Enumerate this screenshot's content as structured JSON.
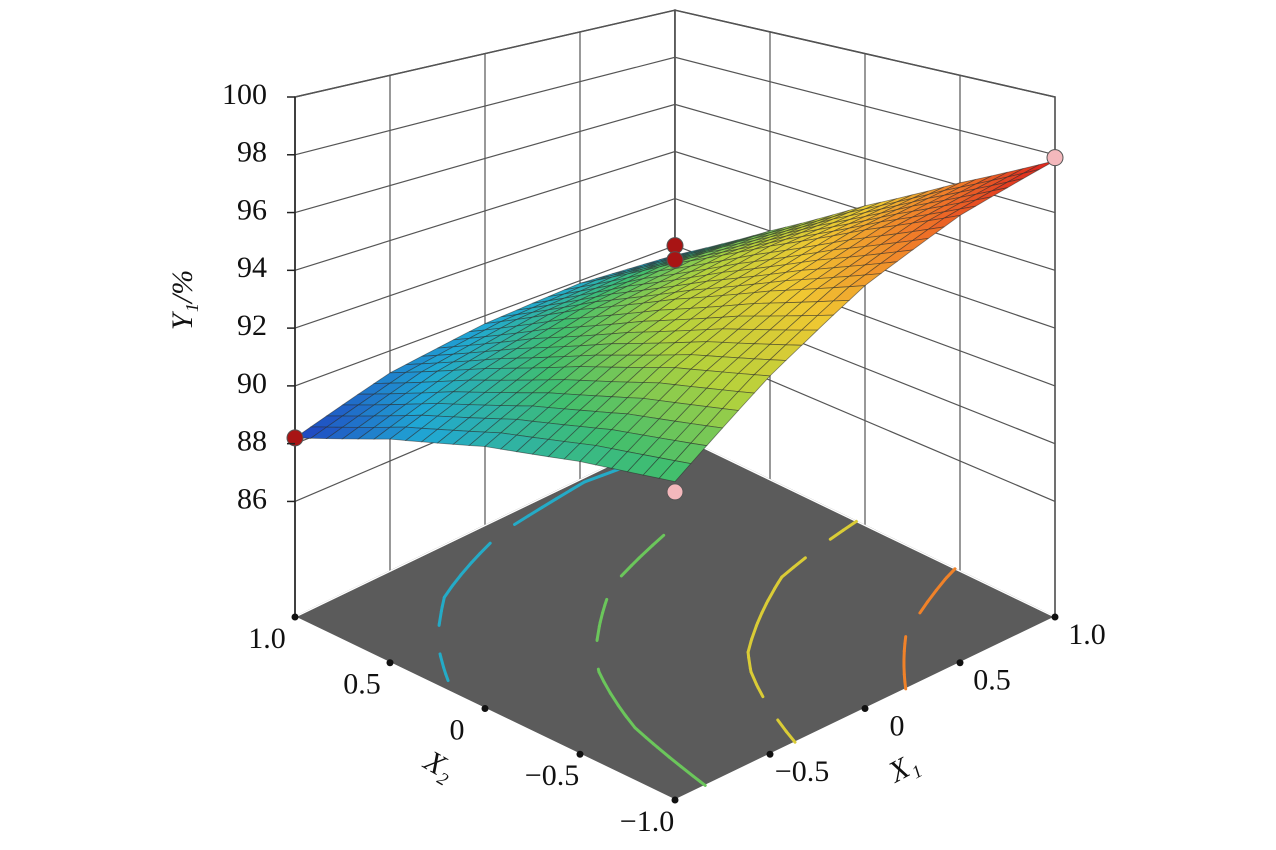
{
  "chart_data": {
    "type": "surface3d",
    "z_label": "Y₁/%",
    "x1_label": "X₁",
    "x2_label": "X₂",
    "x1": [
      -1,
      -0.5,
      0,
      0.5,
      1
    ],
    "x2": [
      -1,
      -0.5,
      0,
      0.5,
      1
    ],
    "z": [
      [
        91.3,
        93.5,
        95.4,
        96.8,
        97.8
      ],
      [
        90.9,
        92.8,
        94.3,
        95.4,
        96.1
      ],
      [
        90.3,
        91.8,
        93.0,
        93.8,
        94.2
      ],
      [
        89.4,
        90.6,
        91.5,
        92.0,
        92.0
      ],
      [
        88.2,
        89.2,
        89.7,
        89.9,
        89.6
      ]
    ],
    "zlim": [
      82,
      100
    ],
    "zticks": [
      86,
      88,
      90,
      92,
      94,
      96,
      98,
      100
    ],
    "x1lim": [
      -1,
      1
    ],
    "x2lim": [
      -1,
      1
    ],
    "x1ticks": [
      {
        "value": -0.5,
        "label": "−0.5"
      },
      0,
      0.5,
      {
        "value": 1,
        "label": "1.0"
      }
    ],
    "x2ticks": [
      {
        "value": -1,
        "label": "−1.0"
      },
      {
        "value": -0.5,
        "label": "−0.5"
      },
      0,
      0.5,
      {
        "value": 1,
        "label": "1.0"
      }
    ],
    "points": [
      {
        "x1": -1,
        "x2": 1,
        "y": 88.2,
        "color": "#a81414"
      },
      {
        "x1": 1,
        "x2": 1,
        "y": 90.0,
        "color": "#a81414"
      },
      {
        "x1": 1,
        "x2": 1,
        "y": 89.4,
        "color": "#a81414"
      },
      {
        "x1": 1,
        "x2": -1,
        "y": 97.9,
        "color": "#f4b8bc"
      },
      {
        "x1": -1,
        "x2": -1,
        "y": 91.0,
        "color": "#f4b8bc"
      }
    ],
    "floor_color": "#5b5b5b",
    "grid": true
  }
}
